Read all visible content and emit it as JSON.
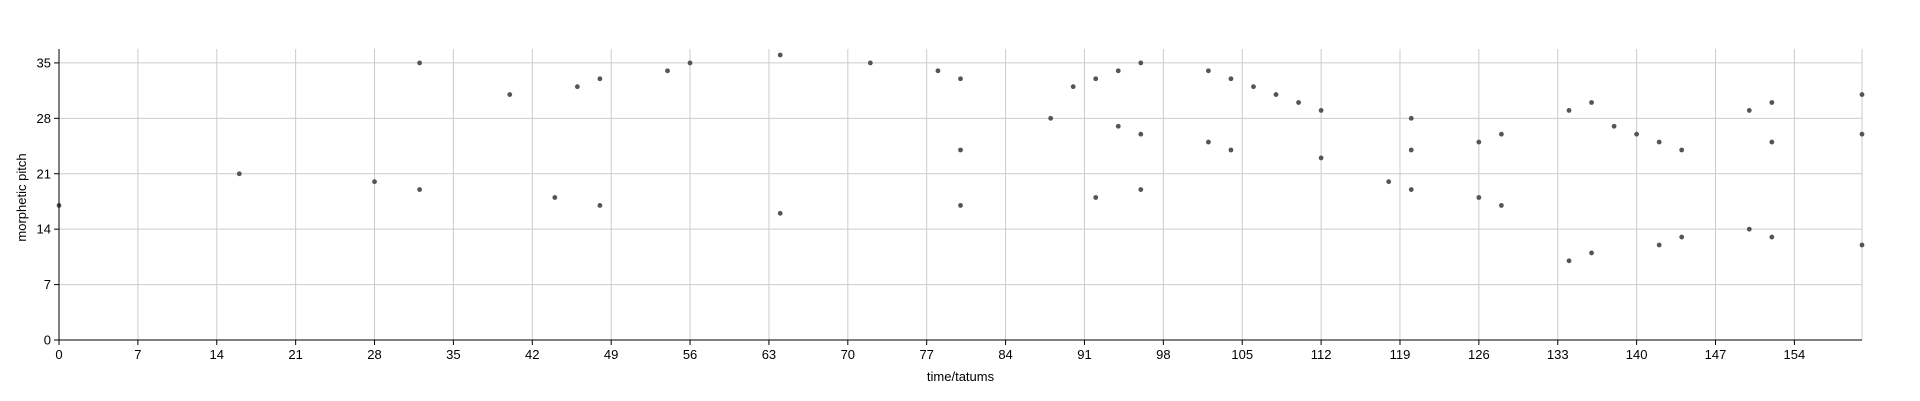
{
  "chart_data": {
    "type": "scatter",
    "xlabel": "time/tatums",
    "ylabel": "morphetic pitch",
    "xlim": [
      0,
      160
    ],
    "ylim": [
      0,
      36
    ],
    "xticks": [
      0,
      7,
      14,
      21,
      28,
      35,
      42,
      49,
      56,
      63,
      70,
      77,
      84,
      91,
      98,
      105,
      112,
      119,
      126,
      133,
      140,
      147,
      154
    ],
    "yticks": [
      0,
      7,
      14,
      21,
      28,
      35
    ],
    "grid": true,
    "point_color": "#555555",
    "series": [
      {
        "points": [
          [
            0,
            17
          ],
          [
            16,
            21
          ],
          [
            28,
            20
          ],
          [
            32,
            35
          ],
          [
            32,
            19
          ],
          [
            40,
            31
          ],
          [
            44,
            18
          ],
          [
            46,
            32
          ],
          [
            48,
            33
          ],
          [
            48,
            17
          ],
          [
            54,
            34
          ],
          [
            56,
            35
          ],
          [
            64,
            36
          ],
          [
            64,
            16
          ],
          [
            72,
            35
          ],
          [
            78,
            34
          ],
          [
            80,
            33
          ],
          [
            80,
            24
          ],
          [
            80,
            17
          ],
          [
            88,
            28
          ],
          [
            90,
            32
          ],
          [
            92,
            33
          ],
          [
            92,
            18
          ],
          [
            94,
            34
          ],
          [
            94,
            27
          ],
          [
            96,
            35
          ],
          [
            96,
            26
          ],
          [
            96,
            19
          ],
          [
            102,
            34
          ],
          [
            102,
            25
          ],
          [
            104,
            33
          ],
          [
            104,
            24
          ],
          [
            106,
            32
          ],
          [
            108,
            31
          ],
          [
            110,
            30
          ],
          [
            112,
            29
          ],
          [
            112,
            23
          ],
          [
            118,
            20
          ],
          [
            120,
            28
          ],
          [
            120,
            24
          ],
          [
            120,
            19
          ],
          [
            126,
            25
          ],
          [
            126,
            18
          ],
          [
            128,
            26
          ],
          [
            128,
            17
          ],
          [
            134,
            29
          ],
          [
            134,
            10
          ],
          [
            136,
            30
          ],
          [
            136,
            11
          ],
          [
            138,
            27
          ],
          [
            140,
            26
          ],
          [
            142,
            25
          ],
          [
            142,
            12
          ],
          [
            144,
            24
          ],
          [
            144,
            13
          ],
          [
            150,
            29
          ],
          [
            150,
            14
          ],
          [
            152,
            30
          ],
          [
            152,
            25
          ],
          [
            152,
            13
          ],
          [
            160,
            31
          ],
          [
            160,
            26
          ],
          [
            160,
            12
          ]
        ]
      }
    ]
  }
}
